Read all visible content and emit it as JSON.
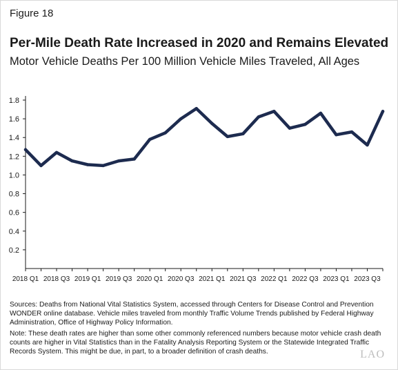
{
  "figure_label": "Figure 18",
  "title": "Per-Mile Death Rate Increased in 2020 and Remains Elevated",
  "subtitle": "Motor Vehicle Deaths Per 100 Million Vehicle Miles Traveled, All Ages",
  "sources": "Sources: Deaths from National Vital Statistics System, accessed through Centers for Disease Control and Prevention WONDER online database. Vehicle miles traveled from monthly Traffic Volume Trends published by Federal Highway Administration, Office of Highway Policy Information.",
  "note": "Note: These death rates are higher than some other commonly referenced numbers because motor vehicle crash death counts are higher in Vital Statistics than in the Fatality Analysis Reporting System or the Statewide Integrated Traffic Records System. This might be due, in part, to a broader definition of crash deaths.",
  "logo_text": "LAO",
  "colors": {
    "line": "#1d2b4f",
    "axis": "#1a1a1a",
    "text": "#1a1a1a",
    "logo": "#bdbdbd"
  },
  "chart_data": {
    "type": "line",
    "x": [
      "2018 Q1",
      "2018 Q2",
      "2018 Q3",
      "2018 Q4",
      "2019 Q1",
      "2019 Q2",
      "2019 Q3",
      "2019 Q4",
      "2020 Q1",
      "2020 Q2",
      "2020 Q3",
      "2020 Q4",
      "2021 Q1",
      "2021 Q2",
      "2021 Q3",
      "2021 Q4",
      "2022 Q1",
      "2022 Q2",
      "2022 Q3",
      "2022 Q4",
      "2023 Q1",
      "2023 Q2",
      "2023 Q3",
      "2023 Q4"
    ],
    "x_tick_labels": [
      "2018 Q1",
      "2018 Q3",
      "2019 Q1",
      "2019 Q3",
      "2020 Q1",
      "2020 Q3",
      "2021 Q1",
      "2021 Q3",
      "2022 Q1",
      "2022 Q3",
      "2023 Q1",
      "2023 Q3"
    ],
    "series": [
      {
        "values": [
          1.27,
          1.1,
          1.24,
          1.15,
          1.11,
          1.1,
          1.15,
          1.17,
          1.38,
          1.45,
          1.6,
          1.71,
          1.55,
          1.41,
          1.44,
          1.62,
          1.68,
          1.5,
          1.54,
          1.66,
          1.43,
          1.46,
          1.32,
          1.68
        ]
      }
    ],
    "y_ticks": [
      0.2,
      0.4,
      0.6,
      0.8,
      1.0,
      1.2,
      1.4,
      1.6,
      1.8
    ],
    "y_tick_labels": [
      "0.2",
      "0.4",
      "0.6",
      "0.8",
      "1.0",
      "1.2",
      "1.4",
      "1.6",
      "1.8"
    ],
    "ylim": [
      0,
      1.8
    ],
    "grid": false,
    "legend": "none"
  }
}
